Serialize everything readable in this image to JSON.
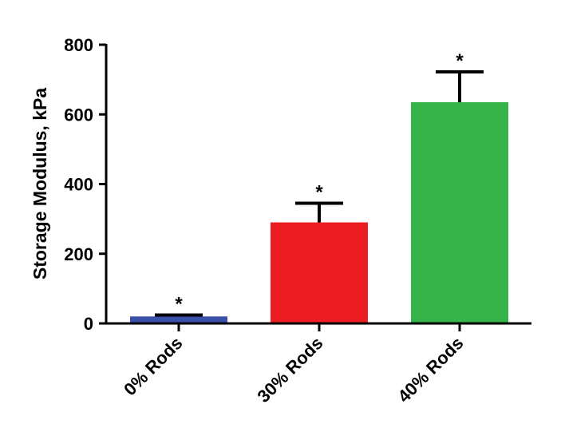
{
  "chart_data": {
    "type": "bar",
    "title": "",
    "xlabel": "",
    "ylabel": "Storage  Modulus, kPa",
    "ylim": [
      0,
      800
    ],
    "yticks": [
      0,
      200,
      400,
      600,
      800
    ],
    "grid": false,
    "categories": [
      "0% Rods",
      "30% Rods",
      "40% Rods"
    ],
    "values": [
      20,
      290,
      635
    ],
    "errors": [
      4,
      55,
      87
    ],
    "annotations": [
      "*",
      "*",
      "*"
    ],
    "colors": [
      "#3a50a8",
      "#ec1c24",
      "#35b24a"
    ]
  }
}
